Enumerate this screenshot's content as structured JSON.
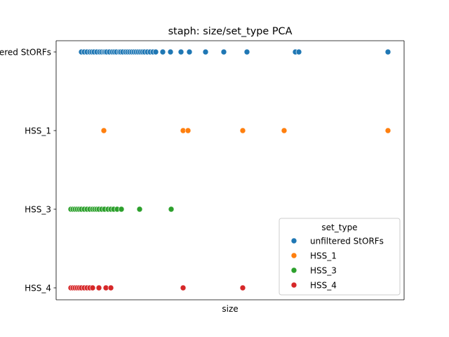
{
  "chart_data": {
    "type": "scatter",
    "title": "staph: size/set_type PCA",
    "xlabel": "size",
    "ylabel": "",
    "x_ticks_shown": false,
    "categories": [
      "unfiltered StORFs",
      "HSS_1",
      "HSS_3",
      "HSS_4"
    ],
    "grid": false,
    "legend": {
      "title": "set_type",
      "placement": "lower-right",
      "entries": [
        "unfiltered StORFs",
        "HSS_1",
        "HSS_3",
        "HSS_4"
      ]
    },
    "series": [
      {
        "name": "unfiltered StORFs",
        "color": "#1f77b4",
        "category": "unfiltered StORFs",
        "x": [
          116,
          120,
          124,
          128,
          131,
          134,
          138,
          142,
          145,
          148,
          150,
          152,
          156,
          160,
          163,
          166,
          170,
          172,
          175,
          179,
          182,
          185,
          188,
          191,
          194,
          197,
          200,
          203,
          206,
          210,
          214,
          218,
          222,
          232,
          243,
          258,
          270,
          293,
          319,
          352,
          421,
          426,
          553
        ]
      },
      {
        "name": "HSS_1",
        "color": "#ff7f0e",
        "category": "HSS_1",
        "x": [
          148,
          261,
          268,
          346,
          405,
          553
        ]
      },
      {
        "name": "HSS_3",
        "color": "#2ca02c",
        "category": "HSS_3",
        "x": [
          101,
          104,
          107,
          110,
          113,
          116,
          120,
          124,
          128,
          132,
          135,
          138,
          141,
          145,
          149,
          154,
          158,
          162,
          167,
          173,
          199,
          244
        ]
      },
      {
        "name": "HSS_4",
        "color": "#d62728",
        "category": "HSS_4",
        "x": [
          101,
          104,
          107,
          110,
          113,
          116,
          120,
          124,
          128,
          132,
          141,
          151,
          158,
          261,
          346
        ]
      }
    ]
  }
}
